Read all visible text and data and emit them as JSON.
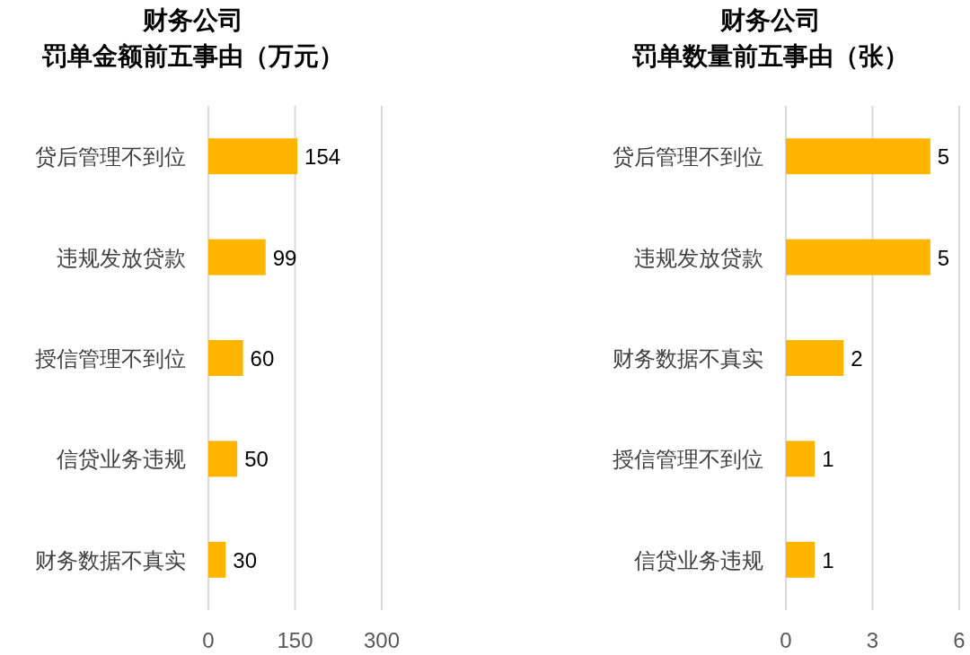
{
  "chart_data": [
    {
      "type": "bar",
      "orientation": "horizontal",
      "title": "财务公司",
      "subtitle": "罚单金额前五事由（万元）",
      "categories": [
        "贷后管理不到位",
        "违规发放贷款",
        "授信管理不到位",
        "信贷业务违规",
        "财务数据不真实"
      ],
      "values": [
        154,
        99,
        60,
        50,
        30
      ],
      "color": "#ffb400",
      "xlim": [
        0,
        300
      ],
      "xticks": [
        0,
        150,
        300
      ],
      "grid": "x",
      "data_labels": true
    },
    {
      "type": "bar",
      "orientation": "horizontal",
      "title": "财务公司",
      "subtitle": "罚单数量前五事由（张）",
      "categories": [
        "贷后管理不到位",
        "违规发放贷款",
        "财务数据不真实",
        "授信管理不到位",
        "信贷业务违规"
      ],
      "values": [
        5,
        5,
        2,
        1,
        1
      ],
      "color": "#ffb400",
      "xlim": [
        0,
        6
      ],
      "xticks": [
        0,
        3,
        6
      ],
      "grid": "x",
      "data_labels": true
    }
  ]
}
